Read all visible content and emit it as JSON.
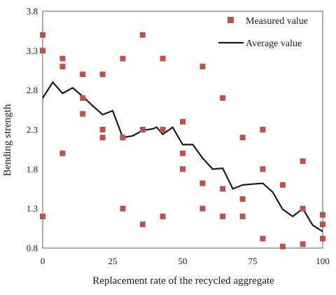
{
  "chart_data": {
    "type": "scatter",
    "xlabel": "Replacement rate of the recycled aggregate",
    "ylabel": "Bending strength",
    "xlim": [
      0,
      100
    ],
    "ylim": [
      0.8,
      3.8
    ],
    "x_ticks": [
      0,
      25,
      50,
      75,
      100
    ],
    "y_ticks": [
      0.8,
      1.3,
      1.8,
      2.3,
      2.8,
      3.3,
      3.8
    ],
    "grid": false,
    "legend_position": "top-right",
    "series": [
      {
        "name": "Measured value",
        "kind": "scatter",
        "color": "#c0504d",
        "marker": "square",
        "points": [
          [
            0,
            3.5
          ],
          [
            0,
            3.3
          ],
          [
            0,
            1.2
          ],
          [
            7.1,
            3.2
          ],
          [
            7.1,
            3.1
          ],
          [
            7.1,
            2.0
          ],
          [
            14.3,
            3.0
          ],
          [
            14.3,
            2.7
          ],
          [
            14.3,
            2.5
          ],
          [
            21.4,
            3.0
          ],
          [
            21.4,
            2.3
          ],
          [
            21.4,
            2.2
          ],
          [
            28.6,
            3.2
          ],
          [
            28.6,
            2.2
          ],
          [
            28.6,
            1.3
          ],
          [
            35.7,
            3.5
          ],
          [
            35.7,
            2.3
          ],
          [
            35.7,
            1.1
          ],
          [
            42.9,
            3.2
          ],
          [
            42.9,
            2.3
          ],
          [
            42.9,
            1.2
          ],
          [
            50,
            2.4
          ],
          [
            50,
            2.0
          ],
          [
            50,
            1.8
          ],
          [
            57.1,
            3.1
          ],
          [
            57.1,
            1.62
          ],
          [
            57.1,
            1.3
          ],
          [
            64.3,
            2.7
          ],
          [
            64.3,
            1.55
          ],
          [
            64.3,
            1.2
          ],
          [
            71.4,
            2.2
          ],
          [
            71.4,
            1.42
          ],
          [
            71.4,
            1.2
          ],
          [
            78.6,
            2.3
          ],
          [
            78.6,
            1.8
          ],
          [
            78.6,
            0.92
          ],
          [
            85.7,
            1.6
          ],
          [
            85.7,
            0.82
          ],
          [
            92.9,
            1.9
          ],
          [
            92.9,
            1.3
          ],
          [
            92.9,
            0.85
          ],
          [
            100,
            1.22
          ],
          [
            100,
            1.1
          ],
          [
            100,
            0.92
          ]
        ]
      },
      {
        "name": "Average value",
        "kind": "line",
        "color": "#1a1a1a",
        "points": [
          [
            0,
            2.7
          ],
          [
            3.6,
            2.9
          ],
          [
            7.1,
            2.76
          ],
          [
            10.7,
            2.83
          ],
          [
            14.3,
            2.72
          ],
          [
            17.9,
            2.6
          ],
          [
            21.4,
            2.49
          ],
          [
            25,
            2.54
          ],
          [
            28.6,
            2.2
          ],
          [
            32.1,
            2.22
          ],
          [
            35.7,
            2.29
          ],
          [
            39.3,
            2.31
          ],
          [
            40.7,
            2.33
          ],
          [
            42.9,
            2.24
          ],
          [
            46.4,
            2.33
          ],
          [
            50,
            2.11
          ],
          [
            53.6,
            2.11
          ],
          [
            57.1,
            1.94
          ],
          [
            60.7,
            1.8
          ],
          [
            64.3,
            1.81
          ],
          [
            67.9,
            1.55
          ],
          [
            71.4,
            1.6
          ],
          [
            75,
            1.61
          ],
          [
            78.6,
            1.62
          ],
          [
            82.1,
            1.51
          ],
          [
            85.7,
            1.29
          ],
          [
            89.3,
            1.2
          ],
          [
            92.9,
            1.3
          ],
          [
            96.4,
            1.09
          ],
          [
            100,
            1.01
          ]
        ]
      }
    ]
  }
}
